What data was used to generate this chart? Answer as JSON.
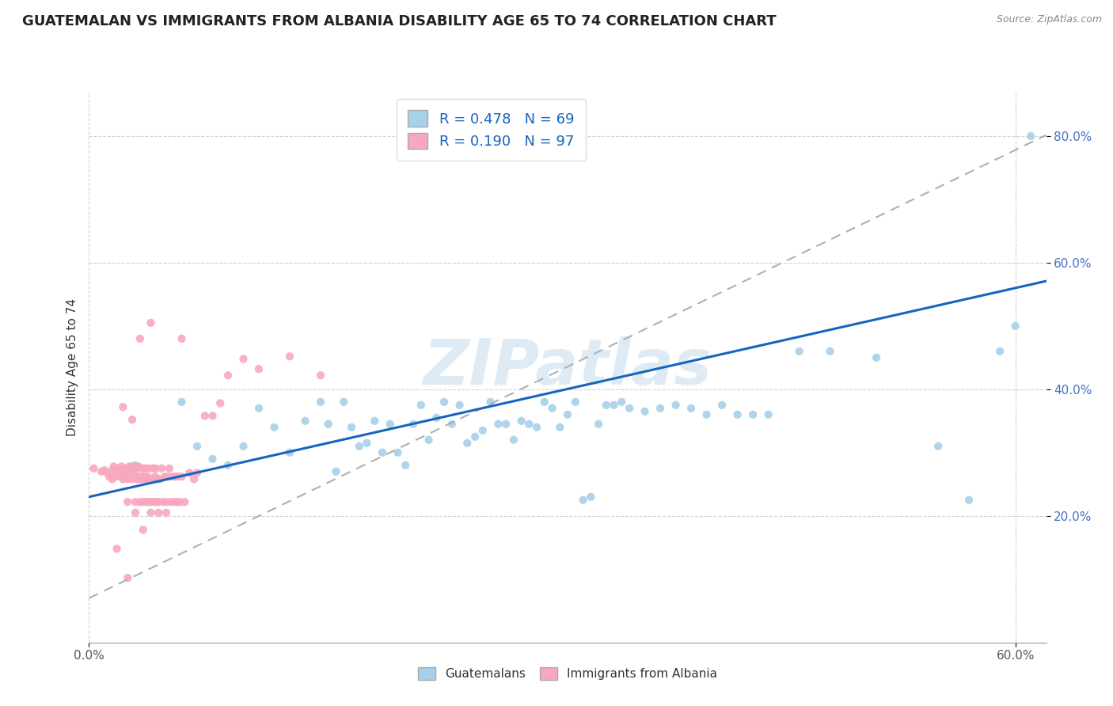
{
  "title": "GUATEMALAN VS IMMIGRANTS FROM ALBANIA DISABILITY AGE 65 TO 74 CORRELATION CHART",
  "source": "Source: ZipAtlas.com",
  "ylabel": "Disability Age 65 to 74",
  "xlim": [
    0.0,
    0.62
  ],
  "ylim": [
    0.0,
    0.87
  ],
  "x_ticks": [
    0.0,
    0.6
  ],
  "x_tick_labels": [
    "0.0%",
    "60.0%"
  ],
  "y_ticks": [
    0.2,
    0.4,
    0.6,
    0.8
  ],
  "y_tick_labels": [
    "20.0%",
    "40.0%",
    "60.0%",
    "80.0%"
  ],
  "blue_color": "#a8d0e8",
  "pink_color": "#f7a8be",
  "blue_line_color": "#1565c0",
  "gray_dash_color": "#b0b0b0",
  "legend_R1": "0.478",
  "legend_N1": "69",
  "legend_R2": "0.190",
  "legend_N2": "97",
  "legend_label1": "Guatemalans",
  "legend_label2": "Immigrants from Albania",
  "watermark": "ZIPatlas",
  "title_fontsize": 13,
  "axis_label_fontsize": 11,
  "tick_fontsize": 11,
  "blue_scatter_x": [
    0.02,
    0.03,
    0.06,
    0.07,
    0.08,
    0.09,
    0.1,
    0.11,
    0.12,
    0.13,
    0.14,
    0.15,
    0.155,
    0.16,
    0.165,
    0.17,
    0.175,
    0.18,
    0.185,
    0.19,
    0.195,
    0.2,
    0.205,
    0.21,
    0.215,
    0.22,
    0.225,
    0.23,
    0.235,
    0.24,
    0.245,
    0.25,
    0.255,
    0.26,
    0.265,
    0.27,
    0.275,
    0.28,
    0.285,
    0.29,
    0.295,
    0.3,
    0.305,
    0.31,
    0.315,
    0.32,
    0.325,
    0.33,
    0.335,
    0.34,
    0.345,
    0.35,
    0.36,
    0.37,
    0.38,
    0.39,
    0.4,
    0.41,
    0.42,
    0.43,
    0.44,
    0.46,
    0.48,
    0.51,
    0.55,
    0.57,
    0.59,
    0.6,
    0.61
  ],
  "blue_scatter_y": [
    0.27,
    0.28,
    0.38,
    0.31,
    0.29,
    0.28,
    0.31,
    0.37,
    0.34,
    0.3,
    0.35,
    0.38,
    0.345,
    0.27,
    0.38,
    0.34,
    0.31,
    0.315,
    0.35,
    0.3,
    0.345,
    0.3,
    0.28,
    0.345,
    0.375,
    0.32,
    0.355,
    0.38,
    0.345,
    0.375,
    0.315,
    0.325,
    0.335,
    0.38,
    0.345,
    0.345,
    0.32,
    0.35,
    0.345,
    0.34,
    0.38,
    0.37,
    0.34,
    0.36,
    0.38,
    0.225,
    0.23,
    0.345,
    0.375,
    0.375,
    0.38,
    0.37,
    0.365,
    0.37,
    0.375,
    0.37,
    0.36,
    0.375,
    0.36,
    0.36,
    0.36,
    0.46,
    0.46,
    0.45,
    0.31,
    0.225,
    0.46,
    0.5,
    0.8
  ],
  "pink_scatter_x": [
    0.003,
    0.008,
    0.01,
    0.012,
    0.013,
    0.015,
    0.015,
    0.016,
    0.017,
    0.018,
    0.019,
    0.02,
    0.02,
    0.021,
    0.021,
    0.022,
    0.022,
    0.023,
    0.023,
    0.024,
    0.025,
    0.025,
    0.025,
    0.026,
    0.026,
    0.027,
    0.028,
    0.028,
    0.029,
    0.03,
    0.03,
    0.031,
    0.031,
    0.032,
    0.032,
    0.033,
    0.033,
    0.034,
    0.034,
    0.035,
    0.035,
    0.036,
    0.036,
    0.037,
    0.037,
    0.038,
    0.038,
    0.039,
    0.039,
    0.04,
    0.04,
    0.041,
    0.041,
    0.042,
    0.042,
    0.043,
    0.043,
    0.044,
    0.044,
    0.045,
    0.045,
    0.046,
    0.047,
    0.048,
    0.049,
    0.05,
    0.05,
    0.051,
    0.052,
    0.053,
    0.054,
    0.055,
    0.056,
    0.057,
    0.058,
    0.059,
    0.06,
    0.062,
    0.065,
    0.068,
    0.07,
    0.075,
    0.08,
    0.085,
    0.09,
    0.1,
    0.11,
    0.13,
    0.15,
    0.06,
    0.04,
    0.025,
    0.035,
    0.018,
    0.022,
    0.028,
    0.033
  ],
  "pink_scatter_y": [
    0.275,
    0.27,
    0.272,
    0.268,
    0.262,
    0.258,
    0.272,
    0.278,
    0.262,
    0.268,
    0.275,
    0.262,
    0.275,
    0.268,
    0.278,
    0.258,
    0.272,
    0.262,
    0.275,
    0.268,
    0.222,
    0.258,
    0.272,
    0.262,
    0.278,
    0.268,
    0.258,
    0.278,
    0.268,
    0.205,
    0.222,
    0.275,
    0.258,
    0.262,
    0.278,
    0.222,
    0.258,
    0.262,
    0.275,
    0.222,
    0.258,
    0.262,
    0.275,
    0.222,
    0.258,
    0.262,
    0.275,
    0.222,
    0.258,
    0.205,
    0.222,
    0.258,
    0.275,
    0.222,
    0.258,
    0.262,
    0.275,
    0.222,
    0.258,
    0.205,
    0.222,
    0.258,
    0.275,
    0.222,
    0.262,
    0.205,
    0.222,
    0.262,
    0.275,
    0.222,
    0.262,
    0.222,
    0.262,
    0.222,
    0.262,
    0.222,
    0.262,
    0.222,
    0.268,
    0.258,
    0.268,
    0.358,
    0.358,
    0.378,
    0.422,
    0.448,
    0.432,
    0.452,
    0.422,
    0.48,
    0.505,
    0.102,
    0.178,
    0.148,
    0.372,
    0.352,
    0.48
  ],
  "blue_line_slope": 0.55,
  "blue_line_intercept": 0.23,
  "gray_line_slope": 1.18,
  "gray_line_intercept": 0.07
}
